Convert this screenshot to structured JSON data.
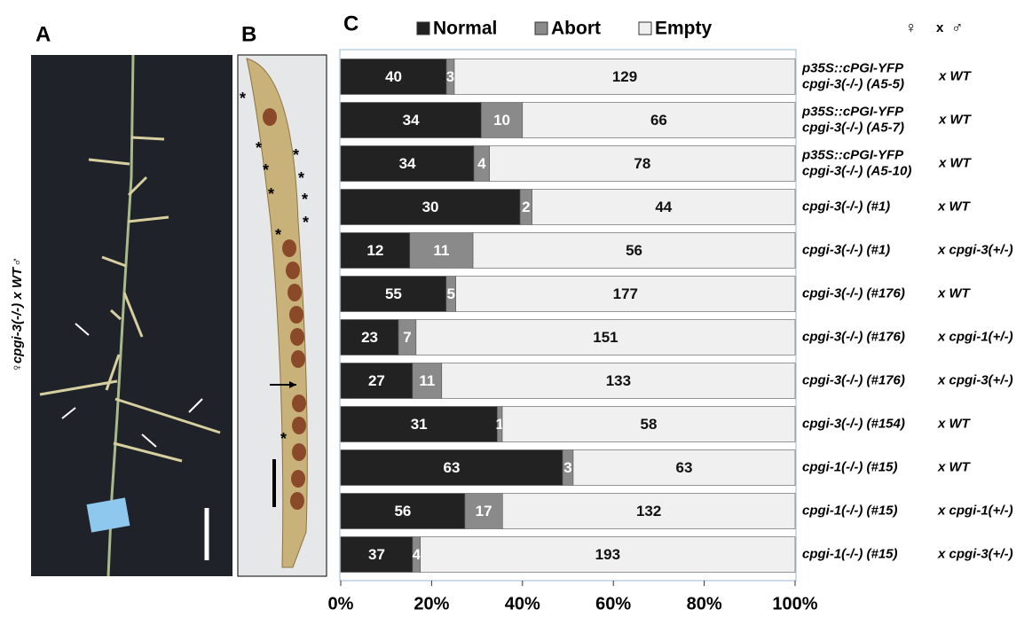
{
  "panels": {
    "a": "A",
    "b": "B",
    "c": "C"
  },
  "panel_a": {
    "side_label": "♀cpgi-3(-/-) x WT♂"
  },
  "panel_b": {
    "marker": "*"
  },
  "cross_header": {
    "female": "♀",
    "x": "x",
    "male": "♂"
  },
  "chart_data": {
    "type": "bar",
    "orientation": "horizontal",
    "stacking": "percent",
    "row_labels": [
      {
        "female": [
          "p35S::cPGI-YFP",
          "cpgi-3(-/-) (A5-5)"
        ],
        "male": "x WT"
      },
      {
        "female": [
          "p35S::cPGI-YFP",
          "cpgi-3(-/-) (A5-7)"
        ],
        "male": "x WT"
      },
      {
        "female": [
          "p35S::cPGI-YFP",
          "cpgi-3(-/-) (A5-10)"
        ],
        "male": "x WT"
      },
      {
        "female": [
          "cpgi-3(-/-) (#1)"
        ],
        "male": "x WT"
      },
      {
        "female": [
          "cpgi-3(-/-) (#1)"
        ],
        "male": "x cpgi-3(+/-)"
      },
      {
        "female": [
          "cpgi-3(-/-) (#176)"
        ],
        "male": "x WT"
      },
      {
        "female": [
          "cpgi-3(-/-) (#176)"
        ],
        "male": "x cpgi-1(+/-)"
      },
      {
        "female": [
          "cpgi-3(-/-) (#176)"
        ],
        "male": "x cpgi-3(+/-)"
      },
      {
        "female": [
          "cpgi-3(-/-) (#154)"
        ],
        "male": "x WT"
      },
      {
        "female": [
          "cpgi-1(-/-) (#15)"
        ],
        "male": "x WT"
      },
      {
        "female": [
          "cpgi-1(-/-) (#15)"
        ],
        "male": "x cpgi-1(+/-)"
      },
      {
        "female": [
          "cpgi-1(-/-) (#15)"
        ],
        "male": "x cpgi-3(+/-)"
      }
    ],
    "series": [
      {
        "name": "Normal",
        "color": "#222222",
        "label_color": "#ffffff",
        "values": [
          40,
          34,
          34,
          30,
          12,
          55,
          23,
          27,
          31,
          63,
          56,
          37
        ]
      },
      {
        "name": "Abort",
        "color": "#8a8a8a",
        "label_color": "#ffffff",
        "values": [
          3,
          10,
          4,
          2,
          11,
          5,
          7,
          11,
          1,
          3,
          17,
          4
        ]
      },
      {
        "name": "Empty",
        "color": "#f0f0f0",
        "label_color": "#111111",
        "values": [
          129,
          66,
          78,
          44,
          56,
          177,
          151,
          133,
          58,
          63,
          132,
          193
        ]
      }
    ],
    "xlim": [
      0,
      100
    ],
    "xticks": [
      {
        "value": 0,
        "label": "0%"
      },
      {
        "value": 20,
        "label": "20%"
      },
      {
        "value": 40,
        "label": "40%"
      },
      {
        "value": 60,
        "label": "60%"
      },
      {
        "value": 80,
        "label": "80%"
      },
      {
        "value": 100,
        "label": "100%"
      }
    ]
  }
}
